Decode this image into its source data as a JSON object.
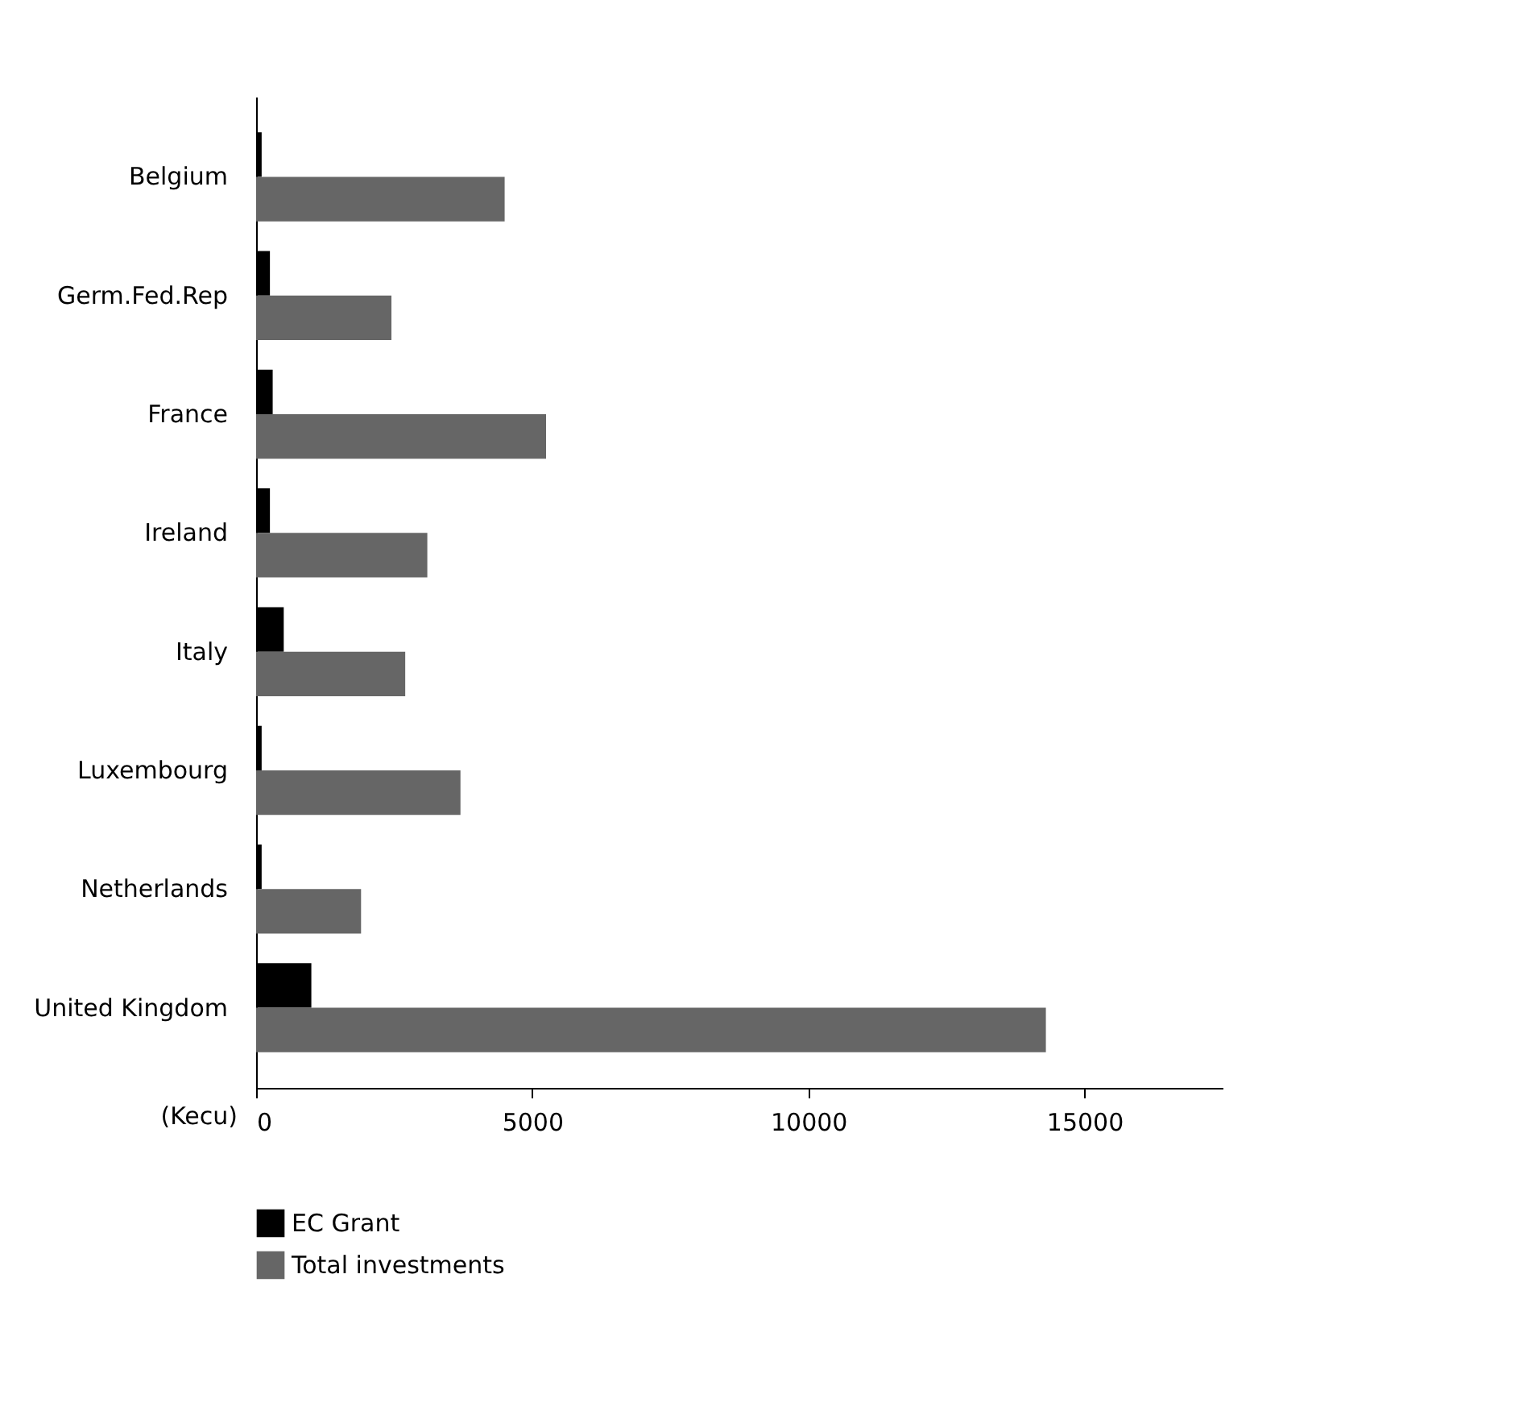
{
  "chart_data": {
    "type": "bar",
    "orientation": "horizontal",
    "xlabel": "(Kecu)",
    "categories": [
      "Belgium",
      "Germ.Fed.Rep",
      "France",
      "Ireland",
      "Italy",
      "Luxembourg",
      "Netherlands",
      "United Kingdom"
    ],
    "series": [
      {
        "name": "EC Grant",
        "color": "#000000",
        "values": [
          100,
          250,
          300,
          250,
          500,
          100,
          100,
          1000
        ]
      },
      {
        "name": "Total investments",
        "color": "#666666",
        "values": [
          4500,
          2450,
          5250,
          3100,
          2700,
          3700,
          1900,
          14300
        ]
      }
    ],
    "xlim": [
      0,
      17500
    ],
    "xticks": [
      0,
      5000,
      10000,
      15000
    ],
    "grid": false,
    "legend": "bottom left"
  }
}
